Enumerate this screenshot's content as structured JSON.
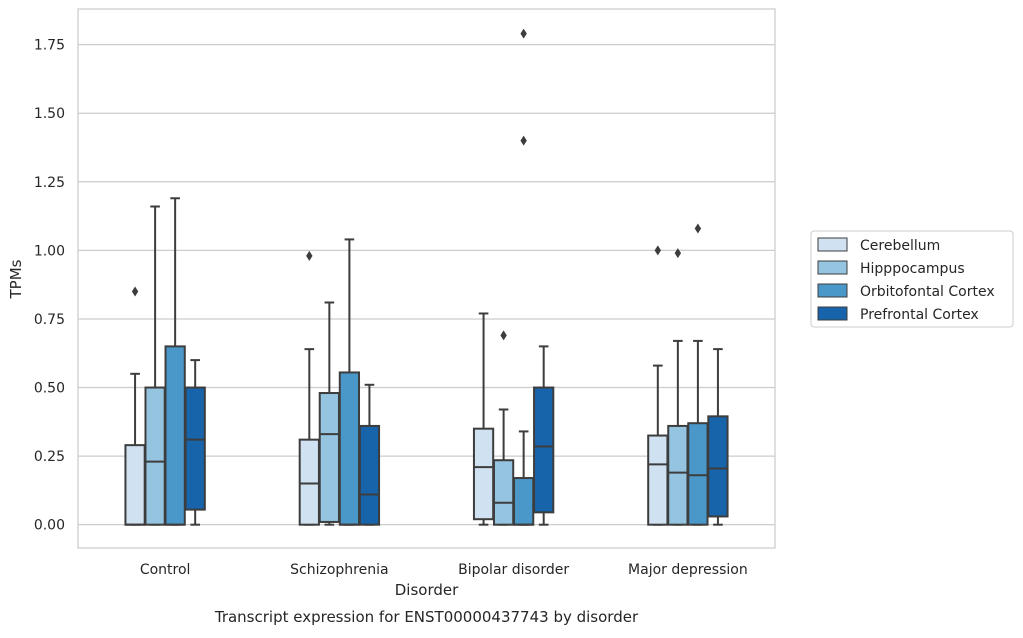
{
  "caption": "Transcript expression for ENST00000437743 by disorder",
  "chart_data": {
    "type": "box",
    "title": "",
    "xlabel": "Disorder",
    "ylabel": "TPMs",
    "ylim": [
      -0.085,
      1.88
    ],
    "yticks": [
      0.0,
      0.25,
      0.5,
      0.75,
      1.0,
      1.25,
      1.5,
      1.75
    ],
    "ytick_labels": [
      "0.00",
      "0.25",
      "0.50",
      "0.75",
      "1.00",
      "1.25",
      "1.50",
      "1.75"
    ],
    "grid": "horizontal",
    "legend_position": "right",
    "categories": [
      "Control",
      "Schizophrenia",
      "Bipolar disorder",
      "Major depression"
    ],
    "series": [
      {
        "name": "Cerebellum",
        "color": "#d0e1f2",
        "boxes": [
          {
            "whislo": 0.0,
            "q1": 0.0,
            "med": 0.0,
            "q3": 0.29,
            "whishi": 0.55,
            "fliers": [
              0.85
            ]
          },
          {
            "whislo": 0.0,
            "q1": 0.0,
            "med": 0.15,
            "q3": 0.31,
            "whishi": 0.64,
            "fliers": [
              0.98
            ]
          },
          {
            "whislo": 0.0,
            "q1": 0.02,
            "med": 0.21,
            "q3": 0.35,
            "whishi": 0.77,
            "fliers": []
          },
          {
            "whislo": 0.0,
            "q1": 0.0,
            "med": 0.22,
            "q3": 0.325,
            "whishi": 0.58,
            "fliers": [
              1.0
            ]
          }
        ]
      },
      {
        "name": "Hipppocampus",
        "color": "#94c4df",
        "boxes": [
          {
            "whislo": 0.0,
            "q1": 0.0,
            "med": 0.23,
            "q3": 0.5,
            "whishi": 1.16,
            "fliers": []
          },
          {
            "whislo": 0.0,
            "q1": 0.01,
            "med": 0.33,
            "q3": 0.48,
            "whishi": 0.81,
            "fliers": []
          },
          {
            "whislo": 0.0,
            "q1": 0.0,
            "med": 0.08,
            "q3": 0.235,
            "whishi": 0.42,
            "fliers": [
              0.69
            ]
          },
          {
            "whislo": 0.0,
            "q1": 0.0,
            "med": 0.19,
            "q3": 0.36,
            "whishi": 0.67,
            "fliers": [
              0.99
            ]
          }
        ]
      },
      {
        "name": "Orbitofontal Cortex",
        "color": "#4a98c9",
        "boxes": [
          {
            "whislo": 0.0,
            "q1": 0.0,
            "med": 0.0,
            "q3": 0.65,
            "whishi": 1.19,
            "fliers": []
          },
          {
            "whislo": 0.0,
            "q1": 0.0,
            "med": 0.0,
            "q3": 0.555,
            "whishi": 1.04,
            "fliers": []
          },
          {
            "whislo": 0.0,
            "q1": 0.0,
            "med": 0.0,
            "q3": 0.17,
            "whishi": 0.34,
            "fliers": [
              1.79,
              1.4
            ]
          },
          {
            "whislo": 0.0,
            "q1": 0.0,
            "med": 0.18,
            "q3": 0.37,
            "whishi": 0.67,
            "fliers": [
              1.08
            ]
          }
        ]
      },
      {
        "name": "Prefrontal Cortex",
        "color": "#1764ab",
        "boxes": [
          {
            "whislo": 0.0,
            "q1": 0.055,
            "med": 0.31,
            "q3": 0.5,
            "whishi": 0.6,
            "fliers": []
          },
          {
            "whislo": 0.0,
            "q1": 0.0,
            "med": 0.11,
            "q3": 0.36,
            "whishi": 0.51,
            "fliers": []
          },
          {
            "whislo": 0.0,
            "q1": 0.045,
            "med": 0.285,
            "q3": 0.5,
            "whishi": 0.65,
            "fliers": []
          },
          {
            "whislo": 0.0,
            "q1": 0.03,
            "med": 0.205,
            "q3": 0.395,
            "whishi": 0.64,
            "fliers": []
          }
        ]
      }
    ]
  }
}
